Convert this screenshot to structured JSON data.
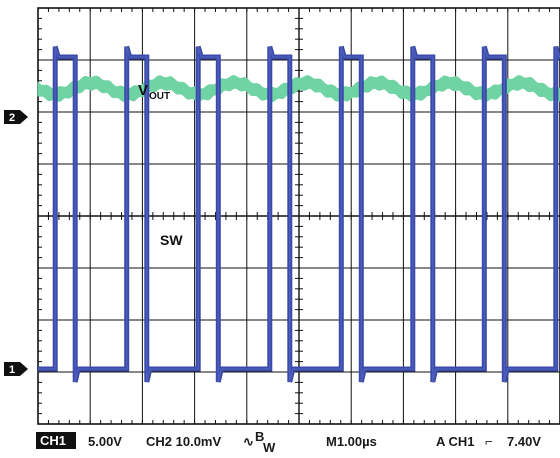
{
  "chart_data": {
    "type": "line",
    "grid": true,
    "divisions": {
      "x": 10,
      "y": 8
    },
    "series": [
      {
        "name": "VOUT",
        "channel": 2,
        "label_main": "V",
        "label_sub": "OUT",
        "color": "#6fd3a4",
        "marker_label": "2",
        "ripple_cycles": 7.3,
        "ripple_amplitude_div": 0.11,
        "band_half_thickness_div": 0.12,
        "baseline_div": 1.0
      },
      {
        "name": "SW",
        "channel": 1,
        "label_main": "SW",
        "color": "#3a4aa8",
        "marker_label": "1",
        "low_div": 0.0,
        "high_div": 2.5,
        "period_div": 1.37,
        "duty": 0.28,
        "first_rise_div": 0.1,
        "overshoot_div": 0.2,
        "undershoot_div": 0.25
      }
    ]
  },
  "readout": {
    "ch1_badge": "CH1",
    "ch1_scale": "5.00V",
    "ch2_scale": "CH2 10.0mV",
    "bw_symbol": "∿",
    "bw_superscript": "B",
    "bw_subscript": "W",
    "timebase": "M1.00µs",
    "trigger": "A CH1",
    "trigger_symbol": "⌐",
    "trigger_level": "7.40V"
  },
  "colors": {
    "grid": "#111111",
    "background": "#ffffff",
    "vout": "#6fd3a4",
    "sw": "#3a4aa8",
    "badge_bg": "#111111",
    "badge_fg": "#ffffff"
  }
}
